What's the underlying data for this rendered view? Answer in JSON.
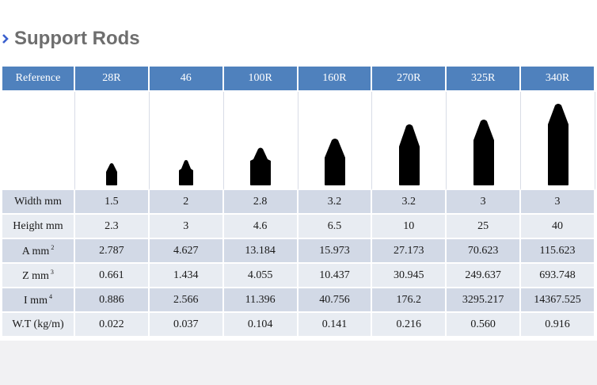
{
  "title": "Support Rods",
  "columns": [
    "Reference",
    "28R",
    "46",
    "100R",
    "160R",
    "270R",
    "325R",
    "340R"
  ],
  "rows": [
    {
      "label": "Width mm",
      "sup": "",
      "values": [
        "1.5",
        "2",
        "2.8",
        "3.2",
        "3.2",
        "3",
        "3"
      ]
    },
    {
      "label": "Height mm",
      "sup": "",
      "values": [
        "2.3",
        "3",
        "4.6",
        "6.5",
        "10",
        "25",
        "40"
      ]
    },
    {
      "label": "A mm",
      "sup": "2",
      "values": [
        "2.787",
        "4.627",
        "13.184",
        "15.973",
        "27.173",
        "70.623",
        "115.623"
      ]
    },
    {
      "label": "Z mm",
      "sup": "3",
      "values": [
        "0.661",
        "1.434",
        "4.055",
        "10.437",
        "30.945",
        "249.637",
        "693.748"
      ]
    },
    {
      "label": "I mm",
      "sup": "4",
      "values": [
        "0.886",
        "2.566",
        "11.396",
        "40.756",
        "176.2",
        "3295.217",
        "14367.525"
      ]
    },
    {
      "label": "W.T (kg/m)",
      "sup": "",
      "values": [
        "0.022",
        "0.037",
        "0.104",
        "0.141",
        "0.216",
        "0.560",
        "0.916"
      ]
    }
  ],
  "colors": {
    "header": "#4f81bd",
    "row_dark": "#d2d9e6",
    "row_light": "#e8ecf2",
    "title": "#6e6e6e",
    "icon": "#3a5fcd"
  },
  "icons": {
    "title_marker": "chevron-right-icon"
  }
}
